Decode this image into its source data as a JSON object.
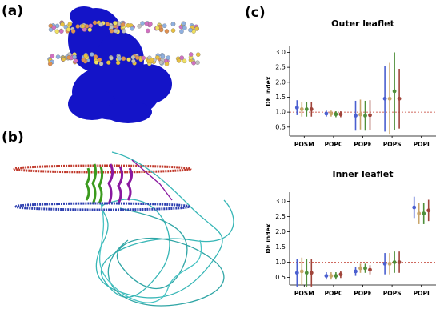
{
  "panel_labels": [
    "(a)",
    "(b)",
    "(c)"
  ],
  "chart_data": [
    {
      "type": "errorbar",
      "title": "Outer leaflet",
      "ylabel": "DE index",
      "categories": [
        "POSM",
        "POPC",
        "POPE",
        "POPS",
        "POPI"
      ],
      "series": [
        {
          "color": "#4a5fd0",
          "values": [
            1.15,
            0.95,
            0.88,
            1.45,
            null
          ],
          "errors": [
            0.25,
            0.1,
            0.5,
            1.1,
            null
          ]
        },
        {
          "color": "#c9a56a",
          "values": [
            1.1,
            0.95,
            0.92,
            1.45,
            null
          ],
          "errors": [
            0.25,
            0.1,
            0.5,
            1.2,
            null
          ]
        },
        {
          "color": "#4f8f3a",
          "values": [
            1.1,
            0.93,
            0.88,
            1.7,
            null
          ],
          "errors": [
            0.25,
            0.1,
            0.5,
            1.3,
            null
          ]
        },
        {
          "color": "#a0443a",
          "values": [
            1.1,
            0.93,
            0.9,
            1.45,
            null
          ],
          "errors": [
            0.25,
            0.1,
            0.5,
            1.0,
            null
          ]
        }
      ],
      "reference_line": 1,
      "ylim": [
        0.2,
        3.2
      ],
      "yticks": [
        0.5,
        {
          "value": 1,
          "label": "1.0"
        },
        1.5,
        {
          "value": 2,
          "label": "2.0"
        },
        2.5,
        {
          "value": 3,
          "label": "3.0"
        }
      ]
    },
    {
      "type": "errorbar",
      "title": "Inner leaflet",
      "ylabel": "DE index",
      "categories": [
        "POSM",
        "POPC",
        "POPE",
        "POPS",
        "POPI"
      ],
      "series": [
        {
          "color": "#4a5fd0",
          "values": [
            0.65,
            0.55,
            0.7,
            0.95,
            2.8
          ],
          "errors": [
            0.45,
            0.12,
            0.15,
            0.35,
            0.35
          ]
        },
        {
          "color": "#c9a56a",
          "values": [
            0.7,
            0.55,
            0.8,
            0.95,
            2.6
          ],
          "errors": [
            0.45,
            0.12,
            0.15,
            0.35,
            0.35
          ]
        },
        {
          "color": "#4f8f3a",
          "values": [
            0.65,
            0.55,
            0.8,
            1.0,
            2.6
          ],
          "errors": [
            0.45,
            0.12,
            0.15,
            0.35,
            0.35
          ]
        },
        {
          "color": "#a0443a",
          "values": [
            0.65,
            0.6,
            0.75,
            1.0,
            2.7
          ],
          "errors": [
            0.45,
            0.12,
            0.15,
            0.35,
            0.35
          ]
        }
      ],
      "reference_line": 1,
      "ylim": [
        0.25,
        3.3
      ],
      "yticks": [
        0.5,
        {
          "value": 1,
          "label": "1.0"
        },
        1.5,
        {
          "value": 2,
          "label": "2.0"
        },
        2.5,
        {
          "value": 3,
          "label": "3.0"
        }
      ]
    }
  ]
}
